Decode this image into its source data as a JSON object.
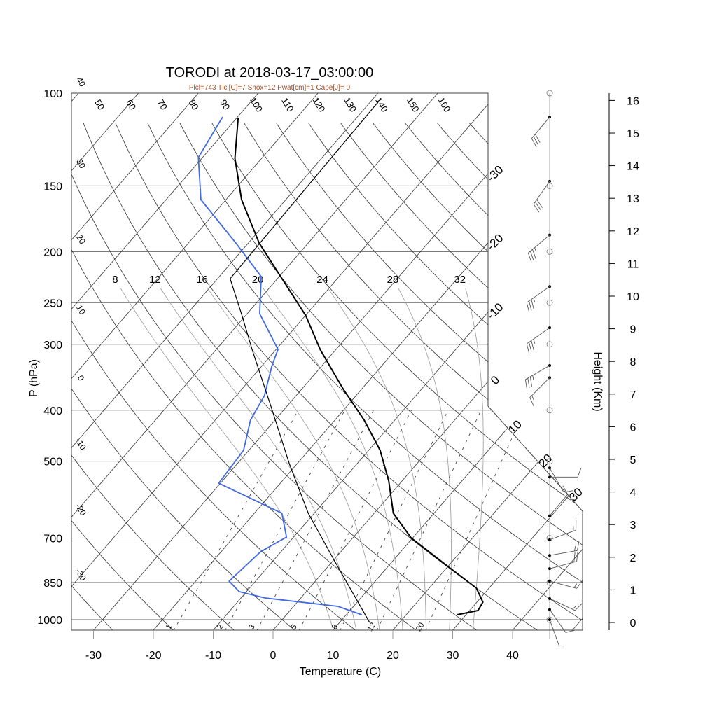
{
  "chart_data": {
    "type": "line",
    "subtype": "skew-T log-P",
    "title": "TORODI at 2018-03-17_03:00:00",
    "subtitle": "Plcl=743 Tlcl[C]=7 Shox=12 Pwat[cm]=1 Cape[J]= 0",
    "xlabel": "Temperature (C)",
    "ylabel": "P (hPa)",
    "y2label": "Height (Km)",
    "ylim_hpa": [
      1050,
      100
    ],
    "xticks": [
      -30,
      -20,
      -10,
      0,
      10,
      20,
      30,
      40
    ],
    "pressure_ticks": [
      100,
      150,
      200,
      250,
      300,
      400,
      500,
      700,
      850,
      1000
    ],
    "height_ticks": [
      0,
      1,
      2,
      3,
      4,
      5,
      6,
      7,
      8,
      9,
      10,
      11,
      12,
      13,
      14,
      15,
      16
    ],
    "dry_adiabat_labels_top": [
      50,
      60,
      70,
      80,
      90,
      100,
      110,
      120,
      130,
      140,
      150,
      160
    ],
    "dry_adiabat_labels_left": [
      40,
      30,
      20,
      10,
      0,
      -10,
      -20,
      -30
    ],
    "moist_adiabat_labels": [
      8,
      12,
      16,
      20,
      24,
      28,
      32
    ],
    "mixing_ratio_labels": [
      1,
      2,
      3,
      5,
      8,
      12,
      20
    ],
    "isotherm_labels_right": [
      -30,
      -20,
      -10,
      0,
      10,
      20,
      30
    ],
    "grid": true,
    "series": [
      {
        "name": "Temperature",
        "color": "#000000",
        "points": [
          [
            111.3,
            -79.8
          ],
          [
            132.9,
            -74.5
          ],
          [
            159.3,
            -67.4
          ],
          [
            192.6,
            -58.2
          ],
          [
            264.8,
            -39.9
          ],
          [
            307.6,
            -32.5
          ],
          [
            364.0,
            -23.2
          ],
          [
            417.8,
            -15.1
          ],
          [
            476.6,
            -8.1
          ],
          [
            545.4,
            -2.2
          ],
          [
            627.8,
            3.2
          ],
          [
            698.9,
            9.7
          ],
          [
            787.5,
            19.5
          ],
          [
            871.1,
            27.9
          ],
          [
            926.3,
            31.0
          ],
          [
            961.0,
            31.4
          ],
          [
            978.8,
            28.5
          ]
        ]
      },
      {
        "name": "Dewpoint",
        "color": "#4169e1",
        "points": [
          [
            111.0,
            -82.5
          ],
          [
            132.5,
            -80.7
          ],
          [
            159.3,
            -74.2
          ],
          [
            192.6,
            -62.1
          ],
          [
            223.1,
            -53.0
          ],
          [
            262.4,
            -47.9
          ],
          [
            306.7,
            -39.7
          ],
          [
            330.1,
            -38.3
          ],
          [
            375.3,
            -35.3
          ],
          [
            417.8,
            -34.1
          ],
          [
            476.6,
            -30.9
          ],
          [
            550.4,
            -30.3
          ],
          [
            627.8,
            -15.4
          ],
          [
            696.7,
            -11.2
          ],
          [
            743.0,
            -13.4
          ],
          [
            845.0,
            -14.4
          ],
          [
            884.7,
            -11.2
          ],
          [
            909.4,
            -6.0
          ],
          [
            943.4,
            7.4
          ],
          [
            978.8,
            12.6
          ]
        ]
      },
      {
        "name": "Parcel",
        "color": "#000000",
        "points": [
          [
            1012,
            15.0
          ],
          [
            770.9,
            0.1
          ],
          [
            627.8,
            -11.0
          ],
          [
            506.7,
            -21.2
          ],
          [
            393.0,
            -32.7
          ],
          [
            307.6,
            -43.9
          ],
          [
            263.9,
            -50.7
          ],
          [
            225.1,
            -57.9
          ],
          [
            103.7,
            -58.7
          ]
        ]
      }
    ],
    "wind_barbs": [
      {
        "p": 111,
        "dir": 220,
        "kt": 30
      },
      {
        "p": 147,
        "dir": 215,
        "kt": 30
      },
      {
        "p": 186,
        "dir": 230,
        "kt": 35
      },
      {
        "p": 233,
        "dir": 235,
        "kt": 35
      },
      {
        "p": 279,
        "dir": 235,
        "kt": 35
      },
      {
        "p": 329,
        "dir": 240,
        "kt": 35
      },
      {
        "p": 347,
        "dir": 225,
        "kt": 15
      },
      {
        "p": 515,
        "dir": 150,
        "kt": 10
      },
      {
        "p": 536,
        "dir": 90,
        "kt": 10
      },
      {
        "p": 635,
        "dir": 40,
        "kt": 10
      },
      {
        "p": 705,
        "dir": 70,
        "kt": 15
      },
      {
        "p": 755,
        "dir": 80,
        "kt": 15
      },
      {
        "p": 800,
        "dir": 75,
        "kt": 20
      },
      {
        "p": 845,
        "dir": 105,
        "kt": 15
      },
      {
        "p": 912,
        "dir": 115,
        "kt": 15
      },
      {
        "p": 957,
        "dir": 145,
        "kt": 10
      },
      {
        "p": 1000,
        "dir": 160,
        "kt": 5
      }
    ]
  }
}
